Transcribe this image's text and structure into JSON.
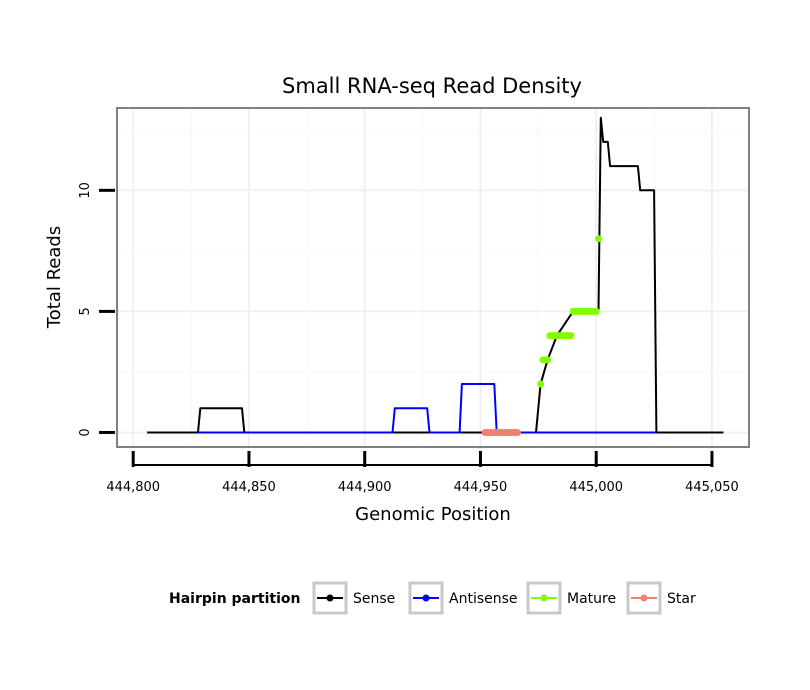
{
  "chart_data": {
    "type": "line",
    "title": "Small RNA-seq Read Density",
    "xlabel": "Genomic Position",
    "ylabel": "Total Reads",
    "xlim": [
      444793,
      445066
    ],
    "ylim": [
      -0.6,
      13.4
    ],
    "x_ticks": [
      444800,
      444850,
      444900,
      444950,
      445000,
      445050
    ],
    "x_tick_labels": [
      "444,800",
      "444,850",
      "444,900",
      "444,950",
      "445,000",
      "445,050"
    ],
    "y_ticks": [
      0,
      5,
      10
    ],
    "y_tick_labels": [
      "0",
      "5",
      "10"
    ],
    "grid": true,
    "legend": {
      "title": "Hairpin partition",
      "position": "bottom",
      "entries": [
        "Sense",
        "Antisense",
        "Mature",
        "Star"
      ]
    },
    "series": [
      {
        "name": "Sense",
        "color": "#000000",
        "style": "line",
        "x": [
          444806,
          444828,
          444829,
          444847,
          444848,
          444974,
          444976,
          444979,
          444983,
          444990,
          445001,
          445002,
          445003,
          445005,
          445006,
          445018,
          445019,
          445025,
          445026,
          445055
        ],
        "y": [
          0,
          0,
          1,
          1,
          0,
          0,
          2,
          3,
          4,
          5,
          5,
          13,
          12,
          12,
          11,
          11,
          10,
          10,
          0,
          0
        ]
      },
      {
        "name": "Antisense",
        "color": "#0000ff",
        "style": "line",
        "x": [
          444828,
          444912,
          444913,
          444927,
          444928,
          444941,
          444942,
          444956,
          444957,
          445026
        ],
        "y": [
          0,
          0,
          1,
          1,
          0,
          0,
          2,
          2,
          0,
          0
        ]
      },
      {
        "name": "Mature",
        "color": "#7fff00",
        "style": "points",
        "x": [
          444976,
          444977,
          444978,
          444979,
          444980,
          444981,
          444982,
          444983,
          444984,
          444985,
          444986,
          444987,
          444988,
          444989,
          444990,
          444991,
          444992,
          444993,
          444994,
          444995,
          444996,
          444997,
          444998,
          444999,
          445000,
          445001
        ],
        "y": [
          2,
          3,
          3,
          3,
          4,
          4,
          4,
          4,
          4,
          4,
          4,
          4,
          4,
          4,
          5,
          5,
          5,
          5,
          5,
          5,
          5,
          5,
          5,
          5,
          5,
          8
        ]
      },
      {
        "name": "Star",
        "color": "#f08070",
        "style": "points",
        "x": [
          444952,
          444953,
          444954,
          444955,
          444956,
          444957,
          444958,
          444959,
          444960,
          444961,
          444962,
          444963,
          444964,
          444965,
          444966
        ],
        "y": [
          0,
          0,
          0,
          0,
          0,
          0,
          0,
          0,
          0,
          0,
          0,
          0,
          0,
          0,
          0
        ]
      }
    ]
  }
}
